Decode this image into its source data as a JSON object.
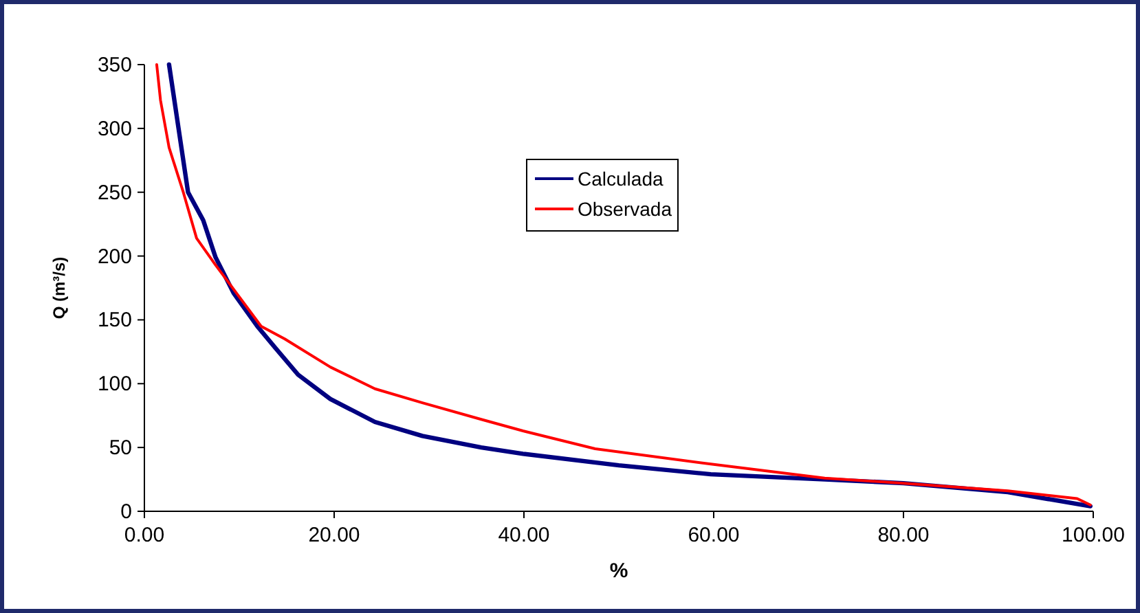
{
  "chart_data": {
    "type": "line",
    "xlabel": "%",
    "ylabel": "Q (m³/s)",
    "xlim": [
      0,
      100
    ],
    "ylim": [
      0,
      350
    ],
    "xticks": [
      {
        "value": 0,
        "label": "0.00"
      },
      {
        "value": 20,
        "label": "20.00"
      },
      {
        "value": 40,
        "label": "40.00"
      },
      {
        "value": 60,
        "label": "60.00"
      },
      {
        "value": 80,
        "label": "80.00"
      },
      {
        "value": 100,
        "label": "100.00"
      }
    ],
    "yticks": [
      0,
      50,
      100,
      150,
      200,
      250,
      300,
      350
    ],
    "grid": false,
    "legend": "top",
    "marker": "none",
    "line_style": "solid",
    "series": [
      {
        "name": "Calculada",
        "color": "#000080",
        "x": [
          2.6,
          3.6,
          4.6,
          6.2,
          7.5,
          9.4,
          11.9,
          13.8,
          16.2,
          19.6,
          24.3,
          29.3,
          35.5,
          39.9,
          50,
          59.7,
          71.7,
          80,
          91,
          99.7
        ],
        "values": [
          350,
          300,
          250,
          228,
          199,
          171,
          145,
          128,
          107,
          88,
          70,
          59,
          50,
          45,
          36,
          29,
          25,
          22,
          15,
          4
        ]
      },
      {
        "name": "Observada",
        "color": "#ff0000",
        "x": [
          1.3,
          1.7,
          2.6,
          4.1,
          5.5,
          7.5,
          10.4,
          12.3,
          14.8,
          19.6,
          24.3,
          29.3,
          35.5,
          39.9,
          47.5,
          59.7,
          71.7,
          80,
          91,
          98.3,
          99.7
        ],
        "values": [
          350,
          322,
          285,
          250,
          214,
          193,
          164,
          145,
          135,
          113,
          96,
          85,
          72,
          63,
          49,
          37,
          26,
          22,
          16,
          10,
          5
        ]
      }
    ]
  }
}
